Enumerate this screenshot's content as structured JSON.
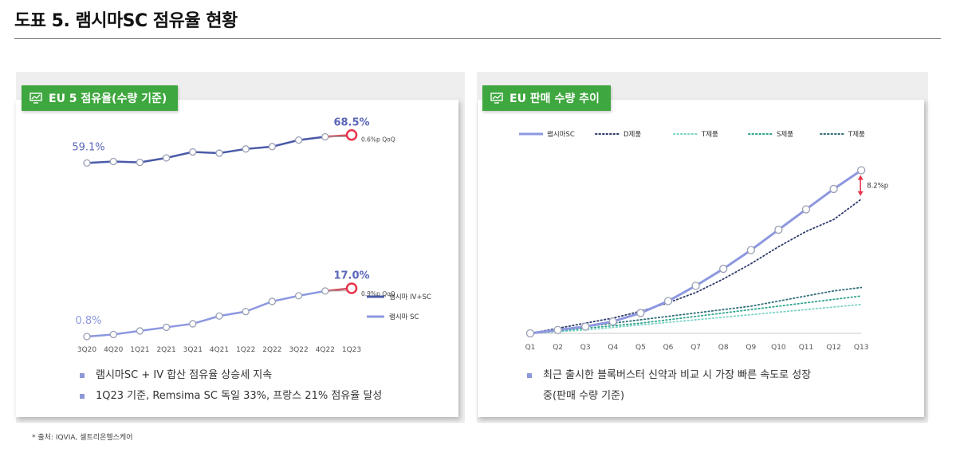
{
  "title": "도표 5. 램시마SC 점유율 현황",
  "source": "* 출처: IQVIA, 셀트리온헬스케어",
  "colors": {
    "dark_line": "#4a5aa8",
    "light_line": "#8d98e0",
    "highlight": "#e8334a",
    "tab_green": "#3fa73f"
  },
  "chart_data": [
    {
      "type": "line",
      "panel_title": "EU 5 점유율(수량 기준)",
      "categories": [
        "3Q20",
        "4Q20",
        "1Q21",
        "2Q21",
        "3Q21",
        "4Q21",
        "1Q22",
        "2Q22",
        "3Q22",
        "4Q22",
        "1Q23"
      ],
      "ylim": [
        0,
        75
      ],
      "series": [
        {
          "name": "램시마 IV+SC",
          "color": "#4a5aa8",
          "values": [
            59.1,
            59.6,
            59.3,
            60.8,
            62.8,
            62.4,
            63.8,
            64.6,
            66.8,
            67.9,
            68.5
          ],
          "start_label": "59.1%",
          "end_label": "68.5%",
          "change_label": "0.6%p QoQ"
        },
        {
          "name": "램시마 SC",
          "color": "#8d98e0",
          "values": [
            0.8,
            1.5,
            2.7,
            3.9,
            5.1,
            7.7,
            9.2,
            12.6,
            14.5,
            16.1,
            17.0
          ],
          "start_label": "0.8%",
          "end_label": "17.0%",
          "change_label": "0.9%p QoQ"
        }
      ],
      "legend_position": "right",
      "notes": [
        "램시마SC + IV 합산 점유율 상승세 지속",
        "1Q23 기준, Remsima SC 독일 33%, 프랑스 21% 점유율 달성"
      ]
    },
    {
      "type": "line",
      "panel_title": "EU 판매 수량 추이",
      "categories": [
        "Q1",
        "Q2",
        "Q3",
        "Q4",
        "Q5",
        "Q6",
        "Q7",
        "Q8",
        "Q9",
        "Q10",
        "Q11",
        "Q12",
        "Q13"
      ],
      "ylim": [
        0,
        100
      ],
      "series": [
        {
          "name": "램시마SC",
          "color": "#8d98e0",
          "style": "solid",
          "values": [
            0,
            2,
            4,
            7,
            12,
            19,
            28,
            38,
            49,
            61,
            73,
            85,
            96
          ]
        },
        {
          "name": "D제품",
          "color": "#2d3a6b",
          "style": "dotted",
          "values": [
            0,
            3,
            6,
            9,
            13,
            18,
            24,
            32,
            41,
            51,
            60,
            67,
            79
          ]
        },
        {
          "name": "T제품",
          "color": "#7ed3c6",
          "style": "dotted",
          "values": [
            0,
            1,
            2,
            3.5,
            5,
            6.5,
            8,
            9.5,
            11,
            12.5,
            14,
            15.5,
            17
          ]
        },
        {
          "name": "S제품",
          "color": "#2fa58e",
          "style": "dotted",
          "values": [
            0,
            1.5,
            3,
            4.5,
            6,
            8,
            10,
            12,
            14,
            16,
            18,
            20,
            22
          ]
        },
        {
          "name": "T제품",
          "color": "#2f6e7a",
          "style": "dotted",
          "values": [
            0,
            2,
            4,
            6,
            8,
            10,
            12,
            14,
            16,
            19,
            22,
            25,
            27
          ]
        }
      ],
      "gap_label": "8.2%p",
      "legend_position": "top",
      "notes": [
        "최근 출시한 블록버스터 신약과 비교 시 가장 빠른 속도로 성장 중(판매 수량 기준)"
      ]
    }
  ]
}
